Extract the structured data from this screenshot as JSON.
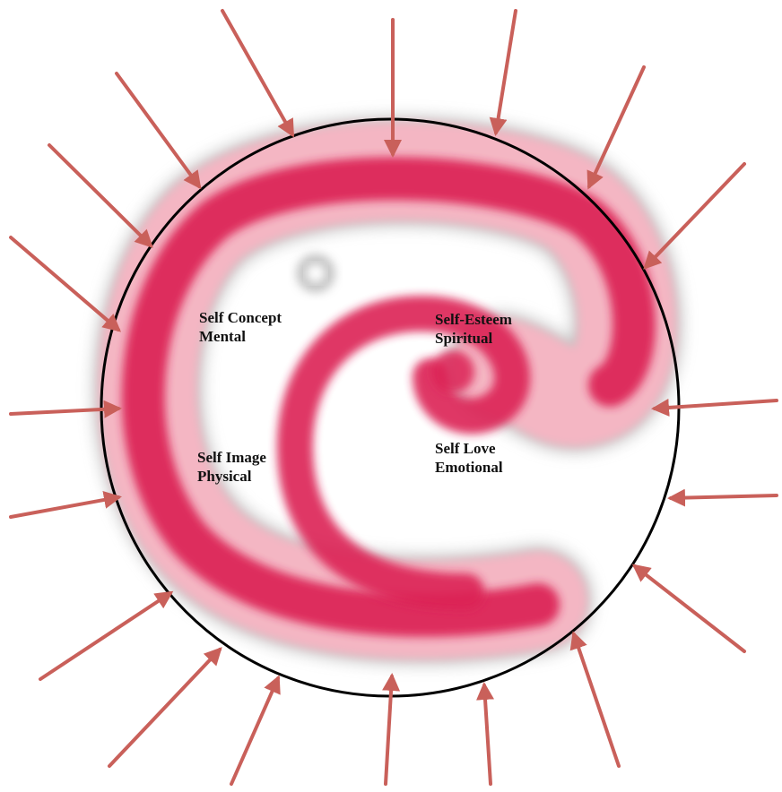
{
  "colors": {
    "arrow": "#c9605a",
    "circle": "#000000",
    "spiral_main": "#dc2454",
    "spiral_light": "#f2a3b3",
    "spiral_shadow": "#8a8a8a",
    "background": "#ffffff"
  },
  "labels": {
    "concept": {
      "line1": "Self Concept",
      "line2": "Mental"
    },
    "esteem": {
      "line1": "Self-Esteem",
      "line2": "Spiritual"
    },
    "image": {
      "line1": "Self Image",
      "line2": "Physical"
    },
    "love": {
      "line1": "Self Love",
      "line2": "Emotional"
    }
  },
  "diagram": {
    "shape": "spiral inside circle",
    "arrow_count": 19,
    "arrows_point_inward": true
  }
}
